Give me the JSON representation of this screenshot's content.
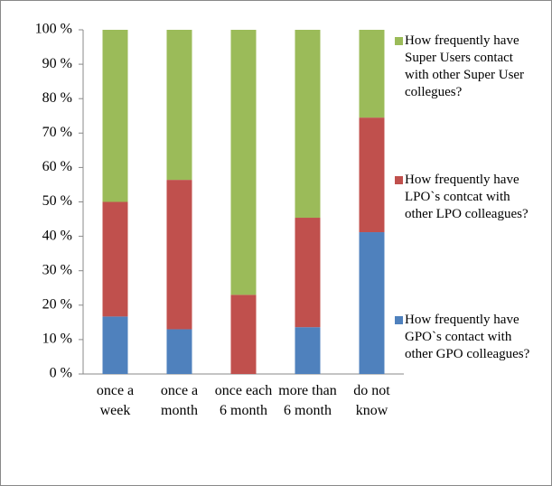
{
  "chart_data": {
    "type": "bar",
    "stacked": true,
    "categories": [
      "once a week",
      "once a month",
      "once each 6 month",
      "more than 6 month",
      "do not know"
    ],
    "series": [
      {
        "name": "How frequently have GPO`s contact with other GPO colleagues?",
        "color": "#4f81bd",
        "values": [
          16.7,
          13,
          0,
          13.6,
          41.2
        ]
      },
      {
        "name": "How frequently have LPO`s contcat with other LPO colleagues?",
        "color": "#c0504d",
        "values": [
          33.3,
          43.4,
          23,
          31.8,
          33.3
        ]
      },
      {
        "name": "How frequently have Super Users contact with other Super User collegues?",
        "color": "#9bbb59",
        "values": [
          50,
          43.6,
          77,
          54.6,
          25.5
        ]
      }
    ],
    "ylim": [
      0,
      100
    ],
    "yticks": [
      {
        "value": 0,
        "label": "0 %"
      },
      {
        "value": 10,
        "label": "10 %"
      },
      {
        "value": 20,
        "label": "20 %"
      },
      {
        "value": 30,
        "label": "30 %"
      },
      {
        "value": 40,
        "label": "40 %"
      },
      {
        "value": 50,
        "label": "50 %"
      },
      {
        "value": 60,
        "label": "60 %"
      },
      {
        "value": 70,
        "label": "70 %"
      },
      {
        "value": 80,
        "label": "80 %"
      },
      {
        "value": 90,
        "label": "90 %"
      },
      {
        "value": 100,
        "label": "100 %"
      }
    ],
    "legend": "right"
  }
}
